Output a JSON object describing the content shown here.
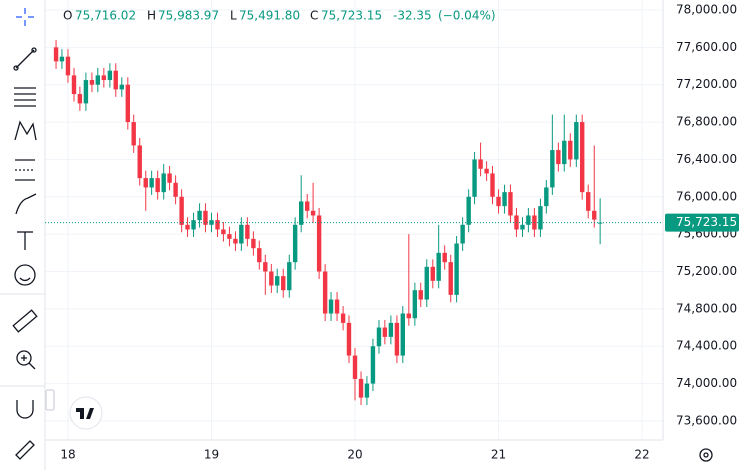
{
  "header": {
    "o_label": "O",
    "o": "75,716.02",
    "h_label": "H",
    "h": "75,983.97",
    "l_label": "L",
    "l": "75,491.80",
    "c_label": "C",
    "c": "75,723.15",
    "change": "-32.35",
    "change_pct": "(−0.04%)"
  },
  "chart_data": {
    "type": "candlestick",
    "up_color": "#089981",
    "down_color": "#f23645",
    "grid": true,
    "x": [
      17.917,
      17.958,
      18,
      18.042,
      18.083,
      18.125,
      18.167,
      18.208,
      18.25,
      18.292,
      18.333,
      18.375,
      18.417,
      18.458,
      18.5,
      18.542,
      18.583,
      18.625,
      18.667,
      18.708,
      18.75,
      18.792,
      18.833,
      18.875,
      18.917,
      18.958,
      19,
      19.042,
      19.083,
      19.125,
      19.167,
      19.208,
      19.25,
      19.292,
      19.333,
      19.375,
      19.417,
      19.458,
      19.5,
      19.542,
      19.583,
      19.625,
      19.667,
      19.708,
      19.75,
      19.792,
      19.833,
      19.875,
      19.917,
      19.958,
      20,
      20.042,
      20.083,
      20.125,
      20.167,
      20.208,
      20.25,
      20.292,
      20.333,
      20.375,
      20.417,
      20.458,
      20.5,
      20.542,
      20.583,
      20.625,
      20.667,
      20.708,
      20.75,
      20.792,
      20.833,
      20.875,
      20.917,
      20.958,
      21,
      21.042,
      21.083,
      21.125,
      21.167,
      21.208,
      21.25,
      21.292,
      21.333,
      21.375,
      21.417,
      21.458,
      21.5,
      21.542,
      21.583,
      21.625,
      21.667,
      21.708
    ],
    "open": [
      77600,
      77450,
      77500,
      77300,
      77100,
      77000,
      77250,
      77200,
      77300,
      77250,
      77350,
      77150,
      77200,
      76800,
      76550,
      76200,
      76100,
      76200,
      76050,
      76250,
      76150,
      76000,
      75700,
      75650,
      75750,
      75850,
      75700,
      75750,
      75650,
      75600,
      75550,
      75500,
      75700,
      75550,
      75450,
      75300,
      75200,
      75050,
      75150,
      75000,
      75300,
      75700,
      75950,
      75850,
      75800,
      75200,
      74750,
      74900,
      74750,
      74650,
      74300,
      74050,
      73850,
      74000,
      74400,
      74600,
      74500,
      74650,
      74300,
      74750,
      74700,
      75000,
      74900,
      75250,
      75100,
      75400,
      75300,
      74950,
      75500,
      75700,
      76000,
      76400,
      76300,
      76250,
      76000,
      75900,
      76050,
      75800,
      75650,
      75700,
      75800,
      75650,
      75900,
      76100,
      76500,
      76350,
      76600,
      76400,
      76800,
      76050,
      75850,
      75716.02
    ],
    "high": [
      77680,
      77580,
      77580,
      77380,
      77180,
      77330,
      77330,
      77380,
      77380,
      77430,
      77430,
      77280,
      77280,
      76880,
      76630,
      76280,
      76280,
      76280,
      76350,
      76330,
      76230,
      76080,
      75780,
      75830,
      75930,
      75930,
      75830,
      75830,
      75730,
      75680,
      75630,
      75780,
      75780,
      75630,
      75530,
      75380,
      75280,
      75230,
      75230,
      75380,
      75780,
      76230,
      76030,
      76150,
      75880,
      75280,
      74980,
      74980,
      74830,
      74730,
      74380,
      74130,
      74080,
      74480,
      74680,
      74680,
      74730,
      74730,
      74830,
      75600,
      75080,
      75080,
      75330,
      75330,
      75700,
      75480,
      75380,
      75580,
      75780,
      76080,
      76480,
      76580,
      76380,
      76330,
      76080,
      76130,
      76130,
      75880,
      75780,
      75880,
      75880,
      75980,
      76180,
      76880,
      76580,
      76880,
      76680,
      76880,
      76880,
      76130,
      76550,
      75983.97
    ],
    "low": [
      77370,
      77370,
      77220,
      77020,
      76920,
      76920,
      77120,
      77120,
      77170,
      77170,
      77070,
      77070,
      76720,
      76470,
      76120,
      75850,
      76020,
      75970,
      75970,
      76070,
      75920,
      75620,
      75570,
      75570,
      75670,
      75620,
      75620,
      75570,
      75520,
      75470,
      75420,
      75420,
      75470,
      75370,
      75220,
      74950,
      74970,
      74970,
      74920,
      74920,
      75220,
      75620,
      75770,
      75720,
      75120,
      74670,
      74670,
      74670,
      74570,
      74220,
      73820,
      73770,
      73770,
      73920,
      74320,
      74420,
      74420,
      74220,
      74220,
      74620,
      74620,
      74820,
      74820,
      75020,
      75020,
      75220,
      74870,
      74870,
      75420,
      75620,
      75920,
      76220,
      76170,
      75920,
      75820,
      75820,
      75720,
      75570,
      75570,
      75620,
      75570,
      75570,
      75820,
      76020,
      76270,
      76270,
      76320,
      76320,
      75970,
      75770,
      75670,
      75491.8
    ],
    "close": [
      77450,
      77500,
      77300,
      77100,
      77000,
      77250,
      77200,
      77300,
      77250,
      77350,
      77150,
      77200,
      76800,
      76550,
      76200,
      76100,
      76200,
      76050,
      76250,
      76150,
      76000,
      75700,
      75650,
      75750,
      75850,
      75700,
      75750,
      75650,
      75600,
      75550,
      75500,
      75700,
      75550,
      75450,
      75300,
      75200,
      75050,
      75150,
      75000,
      75300,
      75700,
      75950,
      75850,
      75800,
      75200,
      74750,
      74900,
      74750,
      74650,
      74300,
      74050,
      73850,
      74000,
      74400,
      74600,
      74500,
      74650,
      74300,
      74750,
      74700,
      75000,
      74900,
      75250,
      75100,
      75400,
      75300,
      74950,
      75500,
      75700,
      76000,
      76400,
      76300,
      76250,
      76000,
      75900,
      76050,
      75800,
      75650,
      75700,
      75800,
      75650,
      75900,
      76100,
      76500,
      76350,
      76600,
      76400,
      76800,
      76050,
      75850,
      75755.5,
      75723.15
    ],
    "xlim": [
      17.84,
      22.146
    ],
    "xticks": [
      18,
      19,
      20,
      21,
      22
    ],
    "ylim": [
      73396,
      78107
    ],
    "yticks": [
      {
        "value": 73600,
        "label": "73,600.00"
      },
      {
        "value": 74000,
        "label": "74,000.00"
      },
      {
        "value": 74400,
        "label": "74,400.00"
      },
      {
        "value": 74800,
        "label": "74,800.00"
      },
      {
        "value": 75200,
        "label": "75,200.00"
      },
      {
        "value": 75600,
        "label": "75,600.00"
      },
      {
        "value": 76000,
        "label": "76,000.00"
      },
      {
        "value": 76400,
        "label": "76,400.00"
      },
      {
        "value": 76800,
        "label": "76,800.00"
      },
      {
        "value": 77200,
        "label": "77,200.00"
      },
      {
        "value": 77600,
        "label": "77,600.00"
      },
      {
        "value": 78000,
        "label": "78,000.00"
      }
    ],
    "last_price": {
      "value": 75723.15,
      "label": "75,723.15"
    }
  }
}
